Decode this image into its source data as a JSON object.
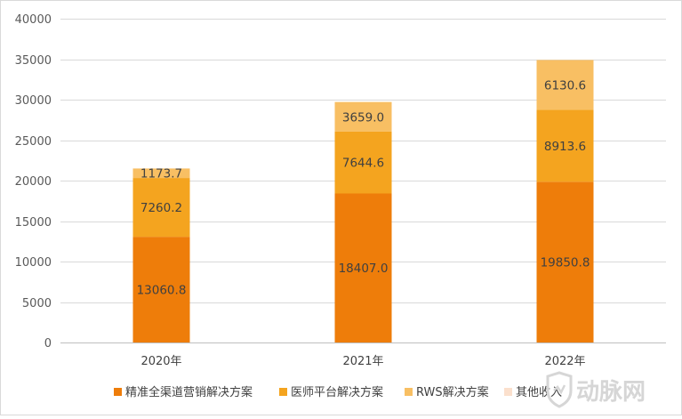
{
  "chart_data": {
    "type": "bar",
    "stacked": true,
    "categories": [
      "2020年",
      "2021年",
      "2022年"
    ],
    "series": [
      {
        "name": "精准全渠道营销解决方案",
        "values": [
          13060.8,
          18407.0,
          19850.8
        ],
        "color": "#ee7d0a"
      },
      {
        "name": "医师平台解决方案",
        "values": [
          7260.2,
          7644.6,
          8913.6
        ],
        "color": "#f4a41f"
      },
      {
        "name": "RWS解决方案",
        "values": [
          1173.7,
          3659.0,
          6130.6
        ],
        "color": "#f8bf63"
      },
      {
        "name": "其他收入",
        "values": [
          0,
          0,
          0
        ],
        "color": "#fbe0cd"
      }
    ],
    "data_labels": [
      [
        "13060.8",
        "18407.0",
        "19850.8"
      ],
      [
        "7260.2",
        "7644.6",
        "8913.6"
      ],
      [
        "1173.7",
        "3659.0",
        "6130.6"
      ]
    ],
    "ylim": [
      0,
      40000
    ],
    "yticks": [
      "0",
      "5000",
      "10000",
      "15000",
      "20000",
      "25000",
      "30000",
      "35000",
      "40000"
    ],
    "grid": true,
    "legend_position": "bottom",
    "title": "",
    "xlabel": "",
    "ylabel": ""
  },
  "watermark": {
    "text": "动脉网",
    "icon": "shield-logo-icon"
  }
}
